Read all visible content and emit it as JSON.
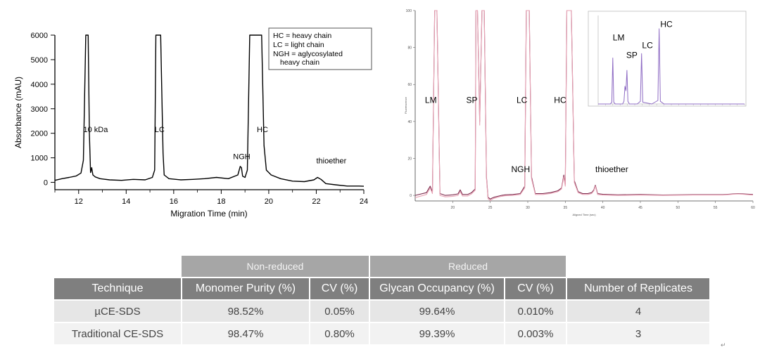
{
  "chart_data": [
    {
      "type": "line",
      "xlabel": "Migration Time (min)",
      "ylabel": "Absorbance (mAU)",
      "xlim": [
        11,
        24
      ],
      "ylim": [
        -300,
        6000
      ],
      "xticks": [
        12,
        14,
        16,
        18,
        20,
        22,
        24
      ],
      "yticks": [
        0,
        1000,
        2000,
        3000,
        4000,
        5000,
        6000
      ],
      "legend": [
        "HC = heavy chain",
        "LC = light chain",
        "NGH = aglycosylated",
        "heavy chain"
      ],
      "legend_position": "top-right",
      "annotations": [
        {
          "text": "10 kDa",
          "x": 12.2,
          "y": 2050
        },
        {
          "text": "LC",
          "x": 15.2,
          "y": 2050
        },
        {
          "text": "NGH",
          "x": 18.5,
          "y": 950
        },
        {
          "text": "HC",
          "x": 19.5,
          "y": 2050
        },
        {
          "text": "thioether",
          "x": 22.0,
          "y": 780
        }
      ],
      "series": [
        {
          "color": "#000000",
          "x": [
            11.0,
            11.3,
            11.6,
            11.9,
            12.1,
            12.2,
            12.3,
            12.35,
            12.4,
            12.45,
            12.5,
            12.55,
            12.6,
            12.7,
            12.9,
            13.3,
            13.8,
            14.3,
            14.8,
            15.1,
            15.2,
            15.25,
            15.35,
            15.45,
            15.55,
            15.6,
            15.8,
            16.3,
            16.8,
            17.3,
            17.8,
            18.3,
            18.7,
            18.8,
            18.85,
            18.9,
            19.0,
            19.1,
            19.2,
            19.3,
            19.4,
            19.5,
            19.6,
            19.7,
            19.8,
            19.9,
            20.1,
            20.5,
            21.0,
            21.5,
            21.9,
            22.05,
            22.2,
            22.4,
            22.8,
            23.3,
            23.8,
            24.0
          ],
          "y": [
            80,
            150,
            200,
            260,
            380,
            900,
            6000,
            6000,
            6000,
            2000,
            400,
            600,
            300,
            220,
            150,
            100,
            80,
            120,
            100,
            200,
            500,
            6000,
            6000,
            6000,
            1200,
            300,
            150,
            100,
            120,
            150,
            200,
            150,
            300,
            650,
            600,
            250,
            200,
            500,
            6000,
            6000,
            6000,
            6000,
            6000,
            6000,
            1500,
            500,
            300,
            150,
            50,
            30,
            100,
            200,
            120,
            -50,
            -100,
            -150,
            -150,
            -160
          ]
        }
      ]
    },
    {
      "type": "line",
      "xlabel": "Aligned Time (sec)",
      "ylabel": "Fluorescence",
      "xlim": [
        15,
        60
      ],
      "ylim": [
        -3,
        100
      ],
      "xticks": [
        20,
        25,
        30,
        35,
        40,
        45,
        50,
        55,
        60
      ],
      "yticks": [
        0,
        20,
        40,
        60,
        80,
        100
      ],
      "annotations": [
        {
          "text": "LM",
          "x": 16.3,
          "y": 50
        },
        {
          "text": "SP",
          "x": 21.8,
          "y": 50
        },
        {
          "text": "LC",
          "x": 28.5,
          "y": 50
        },
        {
          "text": "HC",
          "x": 33.5,
          "y": 50
        },
        {
          "text": "NGH",
          "x": 27.8,
          "y": 12.5
        },
        {
          "text": "thioether",
          "x": 39.0,
          "y": 12.5
        }
      ],
      "series": [
        {
          "color": "#7d2a4c",
          "x": [
            15.0,
            16.5,
            17.0,
            17.3,
            17.6,
            17.9,
            18.3,
            19.0,
            20.0,
            20.7,
            21.0,
            21.3,
            22.0,
            22.5,
            23.0,
            23.1,
            23.3,
            23.6,
            23.9,
            24.2,
            24.5,
            24.7,
            25.0,
            25.2,
            25.5,
            26.0,
            26.5,
            27.0,
            28.0,
            29.0,
            29.6,
            29.8,
            30.0,
            30.2,
            30.5,
            31.0,
            32.0,
            33.0,
            34.0,
            34.5,
            34.8,
            35.0,
            35.2,
            35.5,
            35.8,
            36.2,
            36.7,
            37.3,
            38.0,
            38.5,
            38.8,
            39.0,
            39.3,
            40.0,
            42.0,
            45.0,
            48.0,
            52.0,
            56.0,
            58.0,
            60.0
          ],
          "y": [
            0,
            1.5,
            5.0,
            2.0,
            100,
            100,
            1.0,
            0,
            0.3,
            0.8,
            3.0,
            0.5,
            0.5,
            1.5,
            3.5,
            100,
            100,
            40,
            100,
            100,
            10,
            -1.0,
            -2.0,
            -1.5,
            -1.0,
            -0.5,
            0.0,
            0.3,
            0.5,
            1.0,
            5.0,
            100,
            100,
            100,
            10,
            1.0,
            1.0,
            1.5,
            2.5,
            4.0,
            11.0,
            6.0,
            100,
            100,
            100,
            8.0,
            2.0,
            1.0,
            1.0,
            1.5,
            3.0,
            5.5,
            1.0,
            0.6,
            0.3,
            0.5,
            0.2,
            0.4,
            0.4,
            1.0,
            0.5
          ]
        },
        {
          "color": "#e8a3b5",
          "x": [
            15.0,
            16.5,
            17.0,
            17.3,
            17.6,
            17.9,
            18.3,
            19.0,
            20.0,
            20.7,
            21.0,
            21.3,
            22.0,
            22.5,
            23.0,
            23.1,
            23.3,
            23.6,
            23.9,
            24.2,
            24.5,
            24.7,
            25.0,
            25.2,
            25.5,
            26.0,
            26.5,
            27.0,
            28.0,
            29.0,
            29.6,
            29.8,
            30.0,
            30.2,
            30.5,
            31.0,
            32.0,
            33.0,
            34.0,
            34.5,
            34.8,
            35.0,
            35.2,
            35.5,
            35.8,
            36.2,
            36.7,
            37.3,
            38.0,
            38.5,
            38.8,
            39.0,
            39.3,
            40.0,
            42.0,
            45.0,
            48.0,
            52.0,
            56.0,
            58.0,
            60.0
          ],
          "y": [
            -1.2,
            0.5,
            4.0,
            1.0,
            100,
            100,
            0.0,
            -0.8,
            -0.5,
            0.0,
            2.0,
            -0.3,
            -0.3,
            0.8,
            2.8,
            100,
            100,
            38,
            100,
            100,
            9,
            -1.8,
            -2.8,
            -2.2,
            -1.6,
            -1.0,
            -0.5,
            -0.2,
            0.0,
            0.5,
            4.0,
            100,
            100,
            100,
            9,
            0.5,
            0.5,
            1.0,
            2.0,
            3.5,
            10.0,
            5.0,
            100,
            100,
            100,
            7.0,
            1.5,
            0.5,
            0.5,
            1.0,
            2.5,
            5.0,
            0.5,
            0.2,
            0.0,
            0.2,
            0.0,
            0.2,
            0.2,
            0.8,
            0.2
          ]
        }
      ]
    },
    {
      "type": "line",
      "xlim": [
        0,
        60
      ],
      "ylim": [
        0,
        100
      ],
      "annotations": [
        {
          "text": "LM",
          "x": 6.0,
          "y": 72
        },
        {
          "text": "SP",
          "x": 11.5,
          "y": 52
        },
        {
          "text": "LC",
          "x": 18.0,
          "y": 63
        },
        {
          "text": "HC",
          "x": 25.5,
          "y": 87
        }
      ],
      "series": [
        {
          "color": "#8f6cc4",
          "x": [
            0,
            5.0,
            5.6,
            6.0,
            6.4,
            7.0,
            10.0,
            10.6,
            11.0,
            11.4,
            11.8,
            12.2,
            12.8,
            16.0,
            17.3,
            17.8,
            18.3,
            22.0,
            24.5,
            25.0,
            25.5,
            27.0,
            35.0,
            45.0,
            60.0
          ],
          "y": [
            0,
            0,
            2,
            52,
            2,
            0,
            0,
            3,
            20,
            15,
            38,
            3,
            0,
            0,
            3,
            57,
            2,
            0,
            4,
            85,
            3,
            0,
            0,
            0,
            0
          ]
        }
      ]
    }
  ],
  "table": {
    "groups": [
      "Non-reduced",
      "Reduced"
    ],
    "headers": [
      "Technique",
      "Monomer Purity (%)",
      "CV (%)",
      "Glycan Occupancy (%)",
      "CV (%)",
      "Number of Replicates"
    ],
    "rows": [
      [
        "µCE-SDS",
        "98.52%",
        "0.05%",
        "99.64%",
        "0.010%",
        "4"
      ],
      [
        "Traditional CE-SDS",
        "98.47%",
        "0.80%",
        "99.39%",
        "0.003%",
        "3"
      ]
    ]
  }
}
